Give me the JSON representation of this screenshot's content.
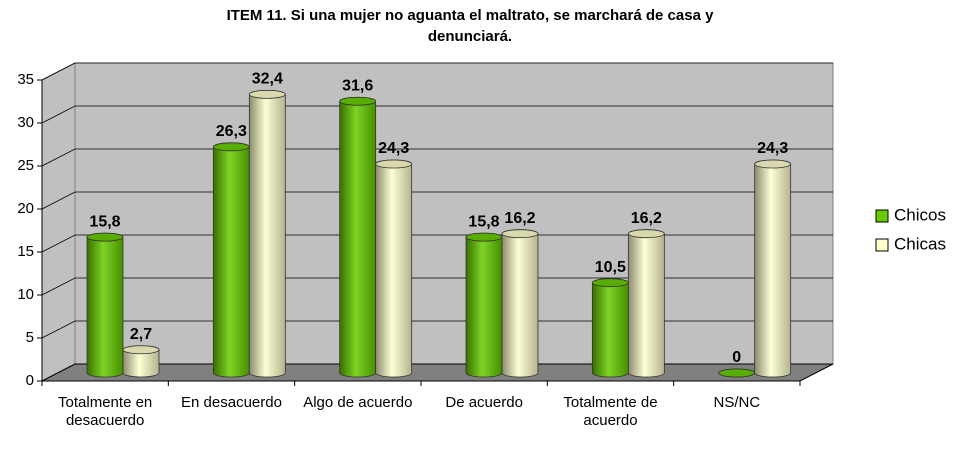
{
  "chart_data": {
    "type": "bar3d",
    "title": "ITEM 11. Si una mujer no aguanta el maltrato, se marchará de casa y denunciará.",
    "categories": [
      "Totalmente en desacuerdo",
      "En desacuerdo",
      "Algo de acuerdo",
      "De acuerdo",
      "Totalmente de acuerdo",
      "NS/NC"
    ],
    "series": [
      {
        "name": "Chicos",
        "color": "#66cc00",
        "values": [
          15.8,
          26.3,
          31.6,
          15.8,
          10.5,
          0
        ],
        "value_labels": [
          "15,8",
          "26,3",
          "31,6",
          "15,8",
          "10,5",
          "0"
        ]
      },
      {
        "name": "Chicas",
        "color": "#ffffcc",
        "values": [
          2.7,
          32.4,
          24.3,
          16.2,
          16.2,
          24.3
        ],
        "value_labels": [
          "2,7",
          "32,4",
          "24,3",
          "16,2",
          "16,2",
          "24,3"
        ]
      }
    ],
    "ylim": [
      0,
      35
    ],
    "yticks": [
      0,
      5,
      10,
      15,
      20,
      25,
      30,
      35
    ],
    "grid": true,
    "legend": "right"
  }
}
